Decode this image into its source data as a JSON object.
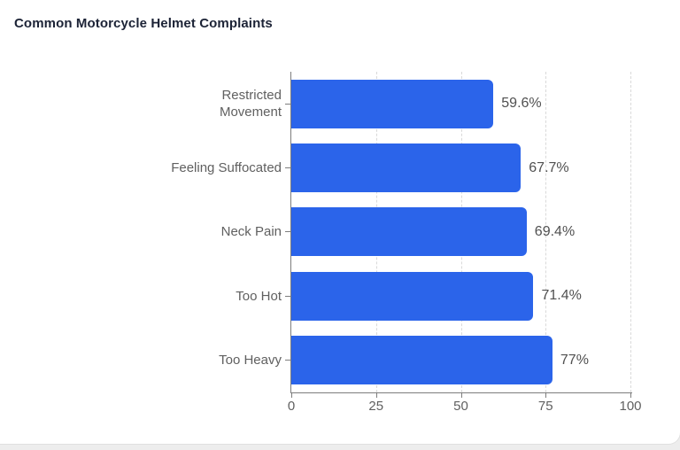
{
  "card": {
    "background": "#ffffff",
    "border_color": "#e0e0e0"
  },
  "chart_data": {
    "type": "bar",
    "orientation": "horizontal",
    "title": "Common Motorcycle Helmet Complaints",
    "categories": [
      "Restricted Movement",
      "Feeling Suffocated",
      "Neck Pain",
      "Too Hot",
      "Too Heavy"
    ],
    "values": [
      59.6,
      67.7,
      69.4,
      71.4,
      77
    ],
    "value_labels": [
      "59.6%",
      "67.7%",
      "69.4%",
      "71.4%",
      "77%"
    ],
    "x_ticks": [
      0,
      25,
      50,
      75,
      100
    ],
    "x_tick_labels": [
      "0",
      "25",
      "50",
      "75",
      "100"
    ],
    "xlim": [
      0,
      100
    ],
    "xlabel": "",
    "ylabel": "",
    "legend": "none",
    "grid": "vertical dashed gridlines at x ticks",
    "bar_color": "#2b64ea",
    "axis_color": "#7d7d7d",
    "gridline_color": "#d9d9d9",
    "category_label_color": "#606060",
    "value_label_color": "#505050",
    "title_color": "#1c2336"
  }
}
